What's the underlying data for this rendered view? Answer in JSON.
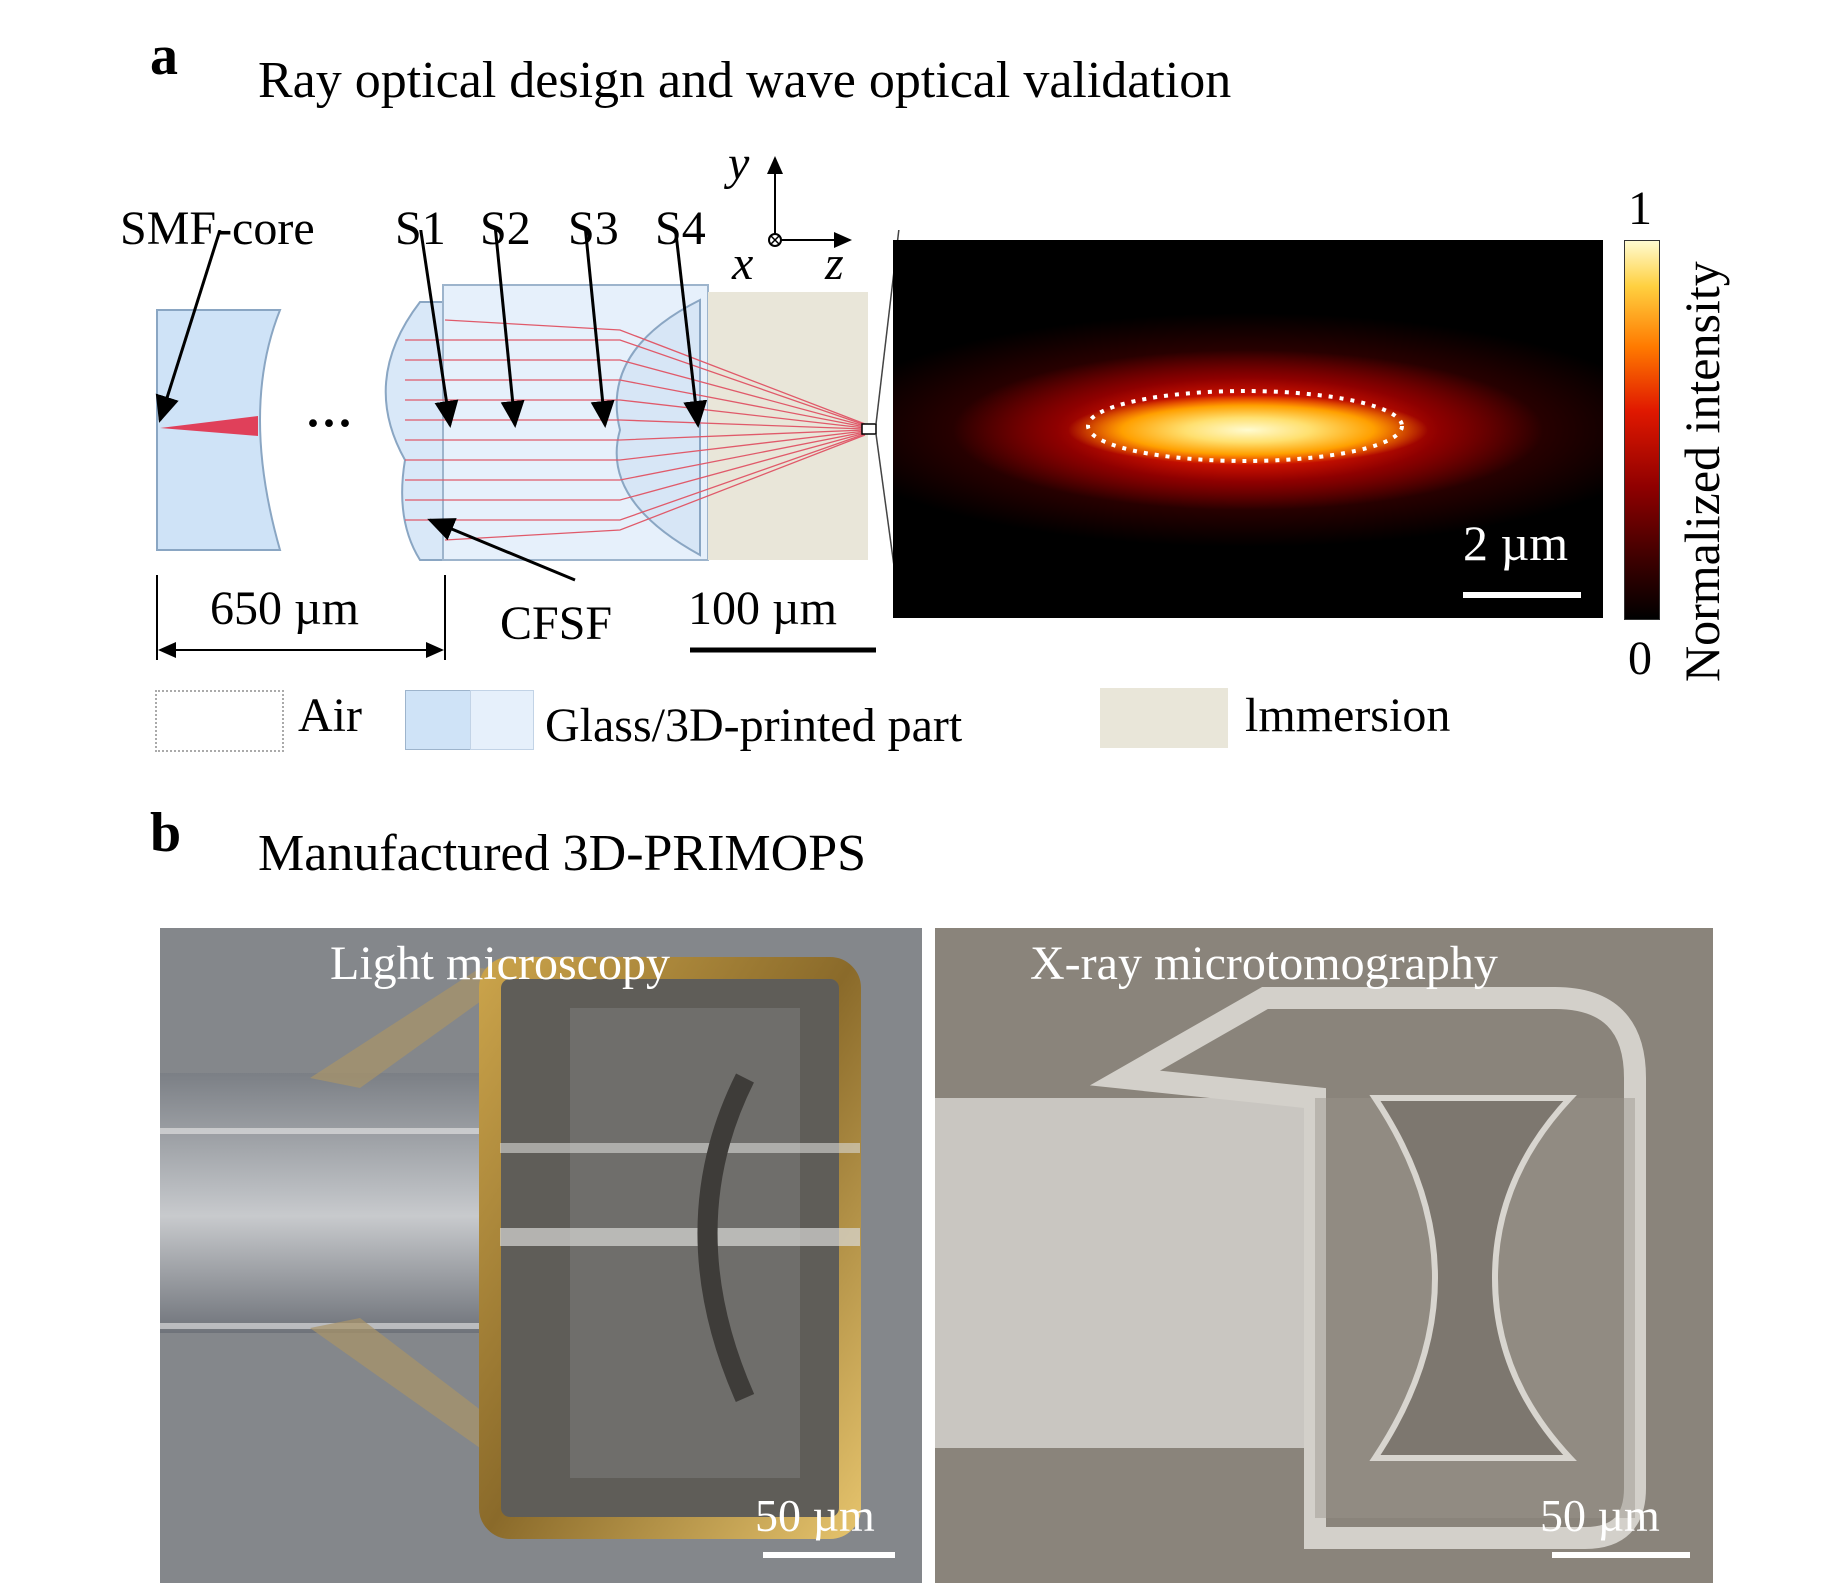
{
  "panel_a": {
    "letter": "a",
    "heading": "Ray optical design and wave optical validation",
    "labels": {
      "smf_core": "SMF-core",
      "s1": "S1",
      "s2": "S2",
      "s3": "S3",
      "s4": "S4",
      "cfsf": "CFSF",
      "ellipsis": "···",
      "dim_650": "650 µm",
      "scale_100": "100 µm",
      "scale_2": "2 µm"
    },
    "axes": {
      "y": "y",
      "x": "x",
      "z": "z"
    },
    "colorbar": {
      "max": "1",
      "min": "0",
      "label": "Normalized intensity"
    },
    "legend": [
      {
        "label": "Air",
        "color": "#ffffff"
      },
      {
        "label": "Glass/3D-printed part",
        "color": "#cfe3f7"
      },
      {
        "label": "lmmersion",
        "color": "#e9e6d9"
      }
    ]
  },
  "panel_b": {
    "letter": "b",
    "heading": "Manufactured 3D-PRIMOPS",
    "images": [
      {
        "title": "Light microscopy",
        "scale": "50 µm"
      },
      {
        "title": "X-ray microtomography",
        "scale": "50 µm"
      }
    ]
  }
}
